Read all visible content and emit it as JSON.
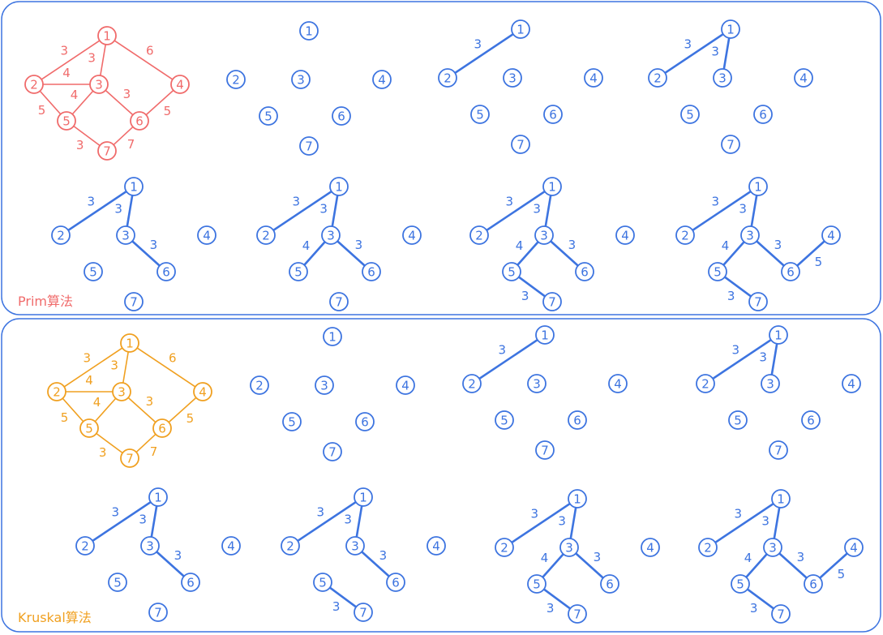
{
  "colors": {
    "prim_original": "#f06b6b",
    "kruskal_original": "#f0a020",
    "steps": "#3d74e0",
    "frame": "#3d74e0",
    "background": "#ffffff"
  },
  "node_labels": [
    "1",
    "2",
    "3",
    "4",
    "5",
    "6",
    "7"
  ],
  "original_graph_edges": [
    {
      "u": 1,
      "v": 2,
      "w": "3"
    },
    {
      "u": 1,
      "v": 3,
      "w": "3"
    },
    {
      "u": 1,
      "v": 4,
      "w": "6"
    },
    {
      "u": 2,
      "v": 3,
      "w": "4"
    },
    {
      "u": 2,
      "v": 5,
      "w": "5"
    },
    {
      "u": 3,
      "v": 5,
      "w": "4"
    },
    {
      "u": 3,
      "v": 6,
      "w": "3"
    },
    {
      "u": 4,
      "v": 6,
      "w": "5"
    },
    {
      "u": 5,
      "v": 7,
      "w": "3"
    },
    {
      "u": 6,
      "v": 7,
      "w": "7"
    }
  ],
  "prim": {
    "label": "Prim算法",
    "steps": [
      [],
      [
        {
          "u": 1,
          "v": 2,
          "w": "3"
        }
      ],
      [
        {
          "u": 1,
          "v": 2,
          "w": "3"
        },
        {
          "u": 1,
          "v": 3,
          "w": "3"
        }
      ],
      [
        {
          "u": 1,
          "v": 2,
          "w": "3"
        },
        {
          "u": 1,
          "v": 3,
          "w": "3"
        },
        {
          "u": 3,
          "v": 6,
          "w": "3"
        }
      ],
      [
        {
          "u": 1,
          "v": 2,
          "w": "3"
        },
        {
          "u": 1,
          "v": 3,
          "w": "3"
        },
        {
          "u": 3,
          "v": 6,
          "w": "3"
        },
        {
          "u": 3,
          "v": 5,
          "w": "4"
        }
      ],
      [
        {
          "u": 1,
          "v": 2,
          "w": "3"
        },
        {
          "u": 1,
          "v": 3,
          "w": "3"
        },
        {
          "u": 3,
          "v": 6,
          "w": "3"
        },
        {
          "u": 3,
          "v": 5,
          "w": "4"
        },
        {
          "u": 5,
          "v": 7,
          "w": "3"
        }
      ],
      [
        {
          "u": 1,
          "v": 2,
          "w": "3"
        },
        {
          "u": 1,
          "v": 3,
          "w": "3"
        },
        {
          "u": 3,
          "v": 6,
          "w": "3"
        },
        {
          "u": 3,
          "v": 5,
          "w": "4"
        },
        {
          "u": 5,
          "v": 7,
          "w": "3"
        },
        {
          "u": 4,
          "v": 6,
          "w": "5"
        }
      ]
    ]
  },
  "kruskal": {
    "label": "Kruskal算法",
    "steps": [
      [],
      [
        {
          "u": 1,
          "v": 2,
          "w": "3"
        }
      ],
      [
        {
          "u": 1,
          "v": 2,
          "w": "3"
        },
        {
          "u": 1,
          "v": 3,
          "w": "3"
        }
      ],
      [
        {
          "u": 1,
          "v": 2,
          "w": "3"
        },
        {
          "u": 1,
          "v": 3,
          "w": "3"
        },
        {
          "u": 3,
          "v": 6,
          "w": "3"
        }
      ],
      [
        {
          "u": 1,
          "v": 2,
          "w": "3"
        },
        {
          "u": 1,
          "v": 3,
          "w": "3"
        },
        {
          "u": 3,
          "v": 6,
          "w": "3"
        },
        {
          "u": 5,
          "v": 7,
          "w": "3"
        }
      ],
      [
        {
          "u": 1,
          "v": 2,
          "w": "3"
        },
        {
          "u": 1,
          "v": 3,
          "w": "3"
        },
        {
          "u": 3,
          "v": 6,
          "w": "3"
        },
        {
          "u": 5,
          "v": 7,
          "w": "3"
        },
        {
          "u": 3,
          "v": 5,
          "w": "4"
        }
      ],
      [
        {
          "u": 1,
          "v": 2,
          "w": "3"
        },
        {
          "u": 1,
          "v": 3,
          "w": "3"
        },
        {
          "u": 3,
          "v": 6,
          "w": "3"
        },
        {
          "u": 5,
          "v": 7,
          "w": "3"
        },
        {
          "u": 3,
          "v": 5,
          "w": "4"
        },
        {
          "u": 4,
          "v": 6,
          "w": "5"
        }
      ]
    ]
  }
}
